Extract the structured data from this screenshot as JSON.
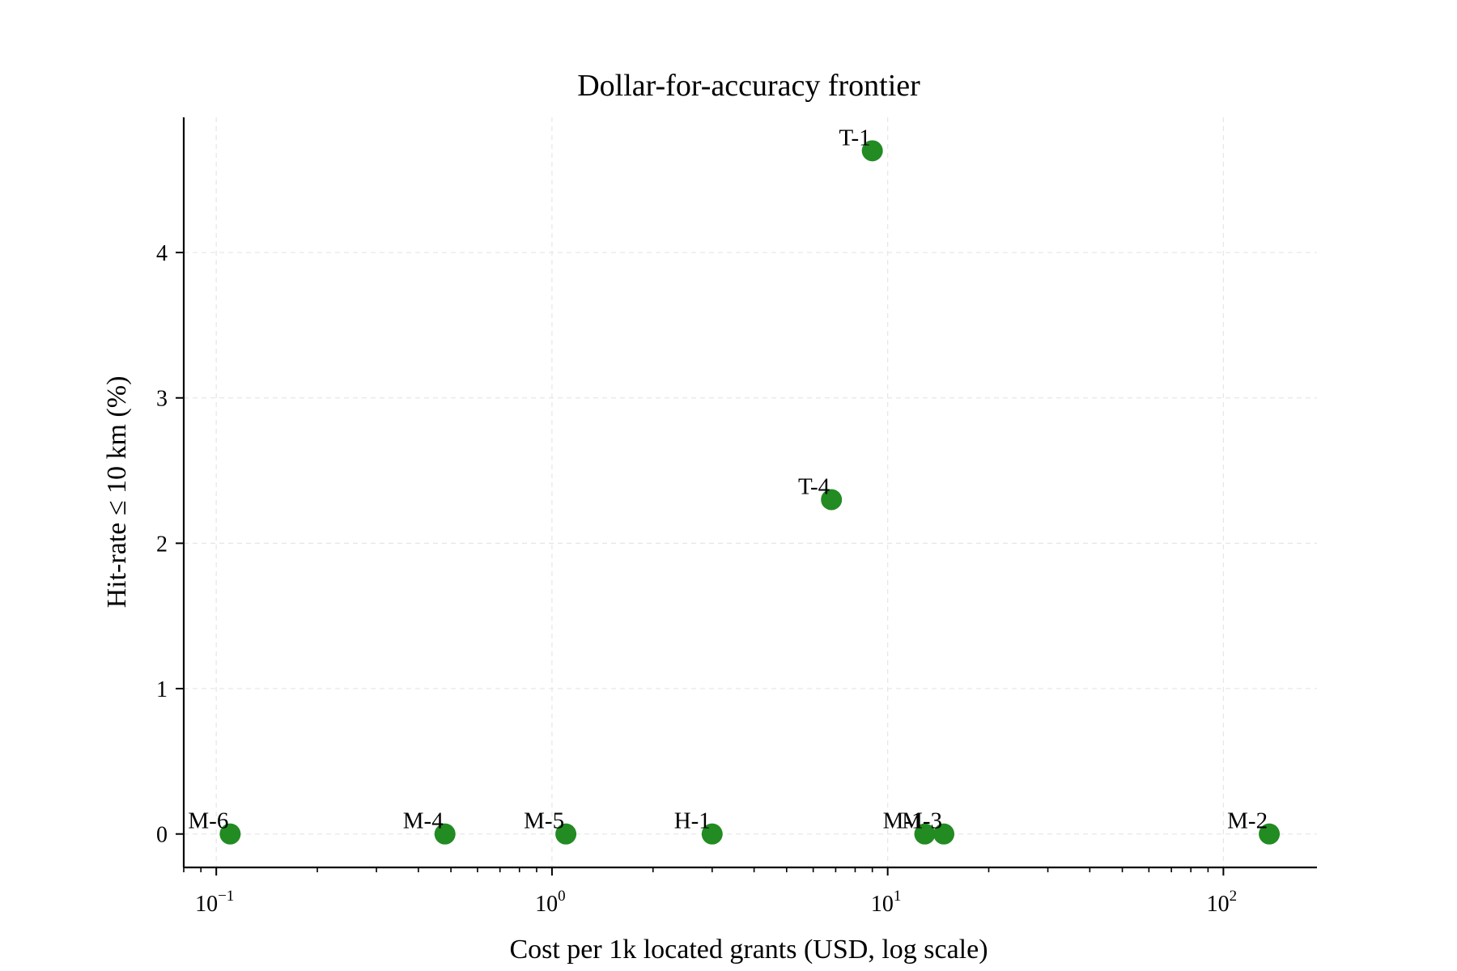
{
  "chart_data": {
    "type": "scatter",
    "title": "Dollar-for-accuracy frontier",
    "xlabel": "Cost per 1k located grants (USD, log scale)",
    "ylabel": "Hit-rate ≤ 10 km (%)",
    "xscale": "log",
    "xlim": [
      0.08,
      190
    ],
    "ylim": [
      -0.23,
      4.93
    ],
    "grid": true,
    "legend": "none",
    "marker_color": "#228B22",
    "x_ticks": [
      {
        "base": "10",
        "exp": "−1",
        "value": 0.1
      },
      {
        "base": "10",
        "exp": "0",
        "value": 1
      },
      {
        "base": "10",
        "exp": "1",
        "value": 10
      },
      {
        "base": "10",
        "exp": "2",
        "value": 100
      }
    ],
    "y_ticks": [
      {
        "label": "0",
        "value": 0
      },
      {
        "label": "1",
        "value": 1
      },
      {
        "label": "2",
        "value": 2
      },
      {
        "label": "3",
        "value": 3
      },
      {
        "label": "4",
        "value": 4
      }
    ],
    "points": [
      {
        "label": "M-6",
        "x": 0.11,
        "y": 0.0
      },
      {
        "label": "M-4",
        "x": 0.48,
        "y": 0.0
      },
      {
        "label": "M-5",
        "x": 1.1,
        "y": 0.0
      },
      {
        "label": "H-1",
        "x": 3.0,
        "y": 0.0
      },
      {
        "label": "T-4",
        "x": 6.8,
        "y": 2.3
      },
      {
        "label": "T-1",
        "x": 9.0,
        "y": 4.7
      },
      {
        "label": "M-1",
        "x": 12.9,
        "y": 0.0
      },
      {
        "label": "M-3",
        "x": 14.7,
        "y": 0.0
      },
      {
        "label": "M-2",
        "x": 137,
        "y": 0.0
      }
    ]
  }
}
